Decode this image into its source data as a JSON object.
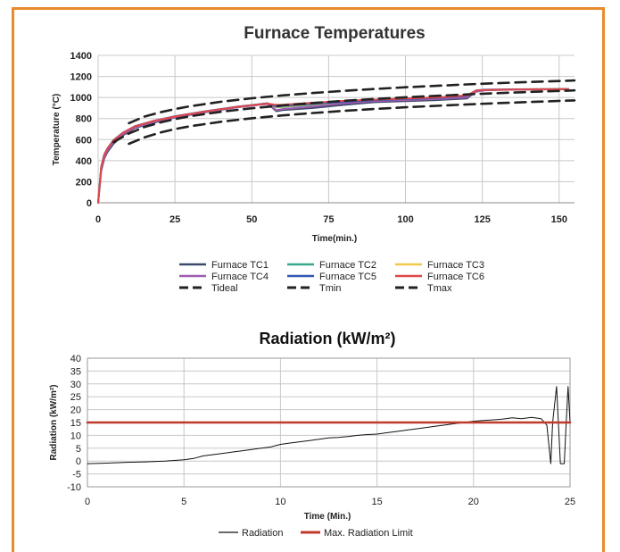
{
  "chart_data": [
    {
      "type": "line",
      "title": "Furnace Temperatures",
      "xlabel": "Time(min.)",
      "ylabel": "Temperature (°C)",
      "xlim": [
        0,
        155
      ],
      "ylim": [
        0,
        1400
      ],
      "xticks": [
        0,
        25,
        50,
        75,
        100,
        125,
        150
      ],
      "yticks": [
        0,
        200,
        400,
        600,
        800,
        1000,
        1200,
        1400
      ],
      "grid": true,
      "legend_position": "bottom",
      "series": [
        {
          "name": "Furnace TC1",
          "color": "#3d4a6b",
          "style": "solid",
          "x": [
            0,
            1,
            2,
            3,
            5,
            8,
            12,
            18,
            25,
            35,
            45,
            55,
            58,
            60,
            70,
            80,
            90,
            100,
            110,
            120,
            123,
            126,
            135,
            145,
            153
          ],
          "y": [
            0,
            300,
            420,
            480,
            560,
            640,
            710,
            760,
            810,
            860,
            905,
            945,
            870,
            880,
            900,
            930,
            955,
            965,
            975,
            990,
            1060,
            1070,
            1075,
            1078,
            1080
          ]
        },
        {
          "name": "Furnace TC2",
          "color": "#3aa68d",
          "style": "solid",
          "x": [
            0,
            1,
            2,
            3,
            5,
            8,
            12,
            18,
            25,
            35,
            45,
            55,
            58,
            60,
            70,
            80,
            90,
            100,
            110,
            120,
            123,
            126,
            135,
            145,
            153
          ],
          "y": [
            0,
            320,
            440,
            500,
            580,
            655,
            720,
            770,
            815,
            865,
            908,
            940,
            905,
            910,
            930,
            955,
            970,
            980,
            990,
            1010,
            1065,
            1072,
            1076,
            1078,
            1080
          ]
        },
        {
          "name": "Furnace TC3",
          "color": "#f2c84b",
          "style": "solid",
          "x": [
            0,
            1,
            2,
            3,
            5,
            8,
            12,
            18,
            25,
            35,
            45,
            55,
            58,
            60,
            70,
            80,
            90,
            100,
            110,
            120,
            123,
            126,
            135,
            145,
            153
          ],
          "y": [
            0,
            330,
            450,
            510,
            590,
            660,
            725,
            775,
            820,
            868,
            910,
            942,
            910,
            915,
            935,
            958,
            972,
            982,
            992,
            1012,
            1066,
            1073,
            1077,
            1079,
            1080
          ]
        },
        {
          "name": "Furnace TC4",
          "color": "#a05bb0",
          "style": "solid",
          "x": [
            0,
            1,
            2,
            3,
            5,
            8,
            12,
            18,
            25,
            35,
            45,
            55,
            58,
            60,
            70,
            80,
            90,
            100,
            110,
            120,
            123,
            126,
            135,
            145,
            153
          ],
          "y": [
            0,
            310,
            430,
            495,
            575,
            650,
            715,
            768,
            812,
            862,
            906,
            938,
            880,
            890,
            915,
            945,
            965,
            975,
            985,
            1000,
            1055,
            1068,
            1074,
            1077,
            1080
          ]
        },
        {
          "name": "Furnace TC5",
          "color": "#2e56b0",
          "style": "solid",
          "x": [
            0,
            1,
            2,
            3,
            5,
            8,
            12,
            18,
            25,
            35,
            45,
            55,
            58,
            60,
            70,
            80,
            90,
            100,
            110,
            120,
            123,
            126,
            135,
            145,
            153
          ],
          "y": [
            0,
            340,
            460,
            515,
            595,
            665,
            728,
            778,
            822,
            870,
            912,
            944,
            915,
            920,
            940,
            960,
            975,
            985,
            995,
            1015,
            1068,
            1074,
            1078,
            1080,
            1080
          ]
        },
        {
          "name": "Furnace TC6",
          "color": "#e04848",
          "style": "solid",
          "x": [
            0,
            1,
            2,
            3,
            5,
            8,
            12,
            18,
            25,
            35,
            45,
            55,
            58,
            60,
            70,
            80,
            90,
            100,
            110,
            120,
            123,
            126,
            135,
            145,
            153
          ],
          "y": [
            0,
            335,
            455,
            512,
            592,
            662,
            726,
            776,
            820,
            868,
            910,
            942,
            930,
            932,
            950,
            968,
            980,
            990,
            1000,
            1020,
            1066,
            1072,
            1076,
            1078,
            1080
          ]
        },
        {
          "name": "Tideal",
          "color": "#222222",
          "style": "dash",
          "x": [
            5,
            10,
            15,
            20,
            25,
            30,
            40,
            50,
            60,
            70,
            80,
            90,
            100,
            110,
            120,
            130,
            140,
            155
          ],
          "y": [
            576,
            658,
            719,
            761,
            795,
            822,
            865,
            898,
            925,
            948,
            968,
            986,
            1002,
            1016,
            1029,
            1041,
            1052,
            1067
          ]
        },
        {
          "name": "Tmin",
          "color": "#222222",
          "style": "dash",
          "x": [
            10,
            15,
            20,
            25,
            30,
            40,
            50,
            60,
            70,
            80,
            90,
            100,
            110,
            120,
            130,
            140,
            155
          ],
          "y": [
            560,
            620,
            665,
            700,
            727,
            770,
            803,
            830,
            853,
            873,
            891,
            907,
            921,
            934,
            946,
            957,
            972
          ]
        },
        {
          "name": "Tmax",
          "color": "#222222",
          "style": "dash",
          "x": [
            10,
            15,
            20,
            25,
            30,
            40,
            50,
            60,
            70,
            80,
            90,
            100,
            110,
            120,
            130,
            140,
            155
          ],
          "y": [
            756,
            818,
            858,
            890,
            917,
            960,
            993,
            1020,
            1043,
            1063,
            1081,
            1097,
            1111,
            1124,
            1136,
            1147,
            1162
          ]
        }
      ]
    },
    {
      "type": "line",
      "title": "Radiation (kW/m²)",
      "xlabel": "Time (Min.)",
      "ylabel": "Radiation (kW/m²)",
      "xlim": [
        0,
        25
      ],
      "ylim": [
        -10,
        40
      ],
      "xticks": [
        0,
        5,
        10,
        15,
        20,
        25
      ],
      "yticks": [
        -10,
        -5,
        0,
        5,
        10,
        15,
        20,
        25,
        30,
        35,
        40
      ],
      "grid": true,
      "legend_position": "bottom",
      "series": [
        {
          "name": "Radiation",
          "color": "#111111",
          "style": "solid",
          "x": [
            0,
            1,
            2,
            3,
            4,
            5,
            5.5,
            6,
            6.5,
            7,
            7.5,
            8,
            8.5,
            9,
            9.5,
            10,
            10.5,
            11,
            11.5,
            12,
            12.5,
            13,
            13.5,
            14,
            14.5,
            15,
            15.5,
            16,
            16.5,
            17,
            17.5,
            18,
            18.5,
            19,
            19.5,
            20,
            20.5,
            21,
            21.5,
            22,
            22.5,
            23,
            23.5,
            23.8,
            24.0,
            24.1,
            24.3,
            24.5,
            24.7,
            24.8,
            24.9,
            25.0
          ],
          "y": [
            -1,
            -0.8,
            -0.5,
            -0.3,
            0,
            0.5,
            1,
            2,
            2.5,
            3,
            3.5,
            4,
            4.5,
            5,
            5.5,
            6.5,
            7,
            7.5,
            8,
            8.5,
            9,
            9.2,
            9.5,
            10,
            10.3,
            10.5,
            11,
            11.5,
            12,
            12.5,
            13,
            13.5,
            14,
            14.5,
            15,
            15.5,
            15.8,
            16,
            16.3,
            16.8,
            16.5,
            17,
            16.5,
            14,
            -1,
            15,
            29,
            -1,
            -1,
            15,
            29,
            15
          ]
        },
        {
          "name": "Max. Radiation Limit",
          "color": "#c0392b",
          "style": "solid",
          "x": [
            0,
            25
          ],
          "y": [
            15,
            15
          ]
        }
      ]
    }
  ]
}
